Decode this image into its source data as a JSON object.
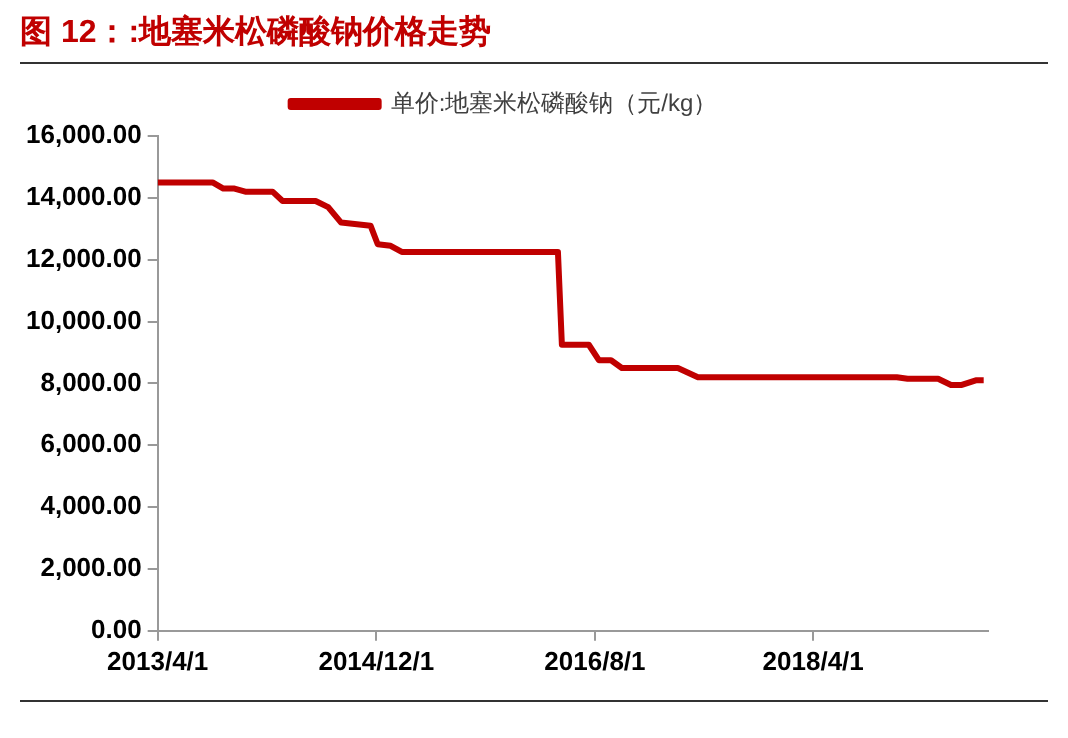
{
  "chart_data": {
    "type": "line",
    "title": "图 12：:地塞米松磷酸钠价格走势",
    "x": [
      "2013-04-01",
      "2013-09-01",
      "2013-10-01",
      "2013-11-01",
      "2013-12-01",
      "2014-02-15",
      "2014-03-15",
      "2014-06-15",
      "2014-07-20",
      "2014-08-25",
      "2014-11-15",
      "2014-12-05",
      "2015-01-10",
      "2015-02-10",
      "2016-04-20",
      "2016-05-01",
      "2016-07-15",
      "2016-08-12",
      "2016-09-15",
      "2016-10-15",
      "2017-03-20",
      "2017-05-15",
      "2018-11-20",
      "2018-12-20",
      "2019-03-15",
      "2019-04-20",
      "2019-05-20",
      "2019-06-28",
      "2019-07-20"
    ],
    "series": [
      {
        "name": "单价:地塞米松磷酸钠（元/kg）",
        "color": "#c00000",
        "values": [
          14500,
          14500,
          14300,
          14300,
          14200,
          14200,
          13900,
          13900,
          13700,
          13200,
          13100,
          12500,
          12450,
          12250,
          12250,
          9250,
          9250,
          8750,
          8750,
          8500,
          8500,
          8200,
          8200,
          8150,
          8150,
          7950,
          7950,
          8100,
          8100
        ]
      }
    ],
    "xlim": [
      "2013-04-01",
      "2019-08-01"
    ],
    "xticks": [
      {
        "value": "2013-04-01",
        "label": "2013/4/1"
      },
      {
        "value": "2014-12-01",
        "label": "2014/12/1"
      },
      {
        "value": "2016-08-01",
        "label": "2016/8/1"
      },
      {
        "value": "2018-04-01",
        "label": "2018/4/1"
      }
    ],
    "ylim": [
      0,
      16000
    ],
    "yticks": [
      {
        "value": 0,
        "label": "0.00"
      },
      {
        "value": 2000,
        "label": "2,000.00"
      },
      {
        "value": 4000,
        "label": "4,000.00"
      },
      {
        "value": 6000,
        "label": "6,000.00"
      },
      {
        "value": 8000,
        "label": "8,000.00"
      },
      {
        "value": 10000,
        "label": "10,000.00"
      },
      {
        "value": 12000,
        "label": "12,000.00"
      },
      {
        "value": 14000,
        "label": "14,000.00"
      },
      {
        "value": 16000,
        "label": "16,000.00"
      }
    ],
    "grid": false,
    "legend": "top",
    "marker": "none",
    "line_style": "solid"
  }
}
